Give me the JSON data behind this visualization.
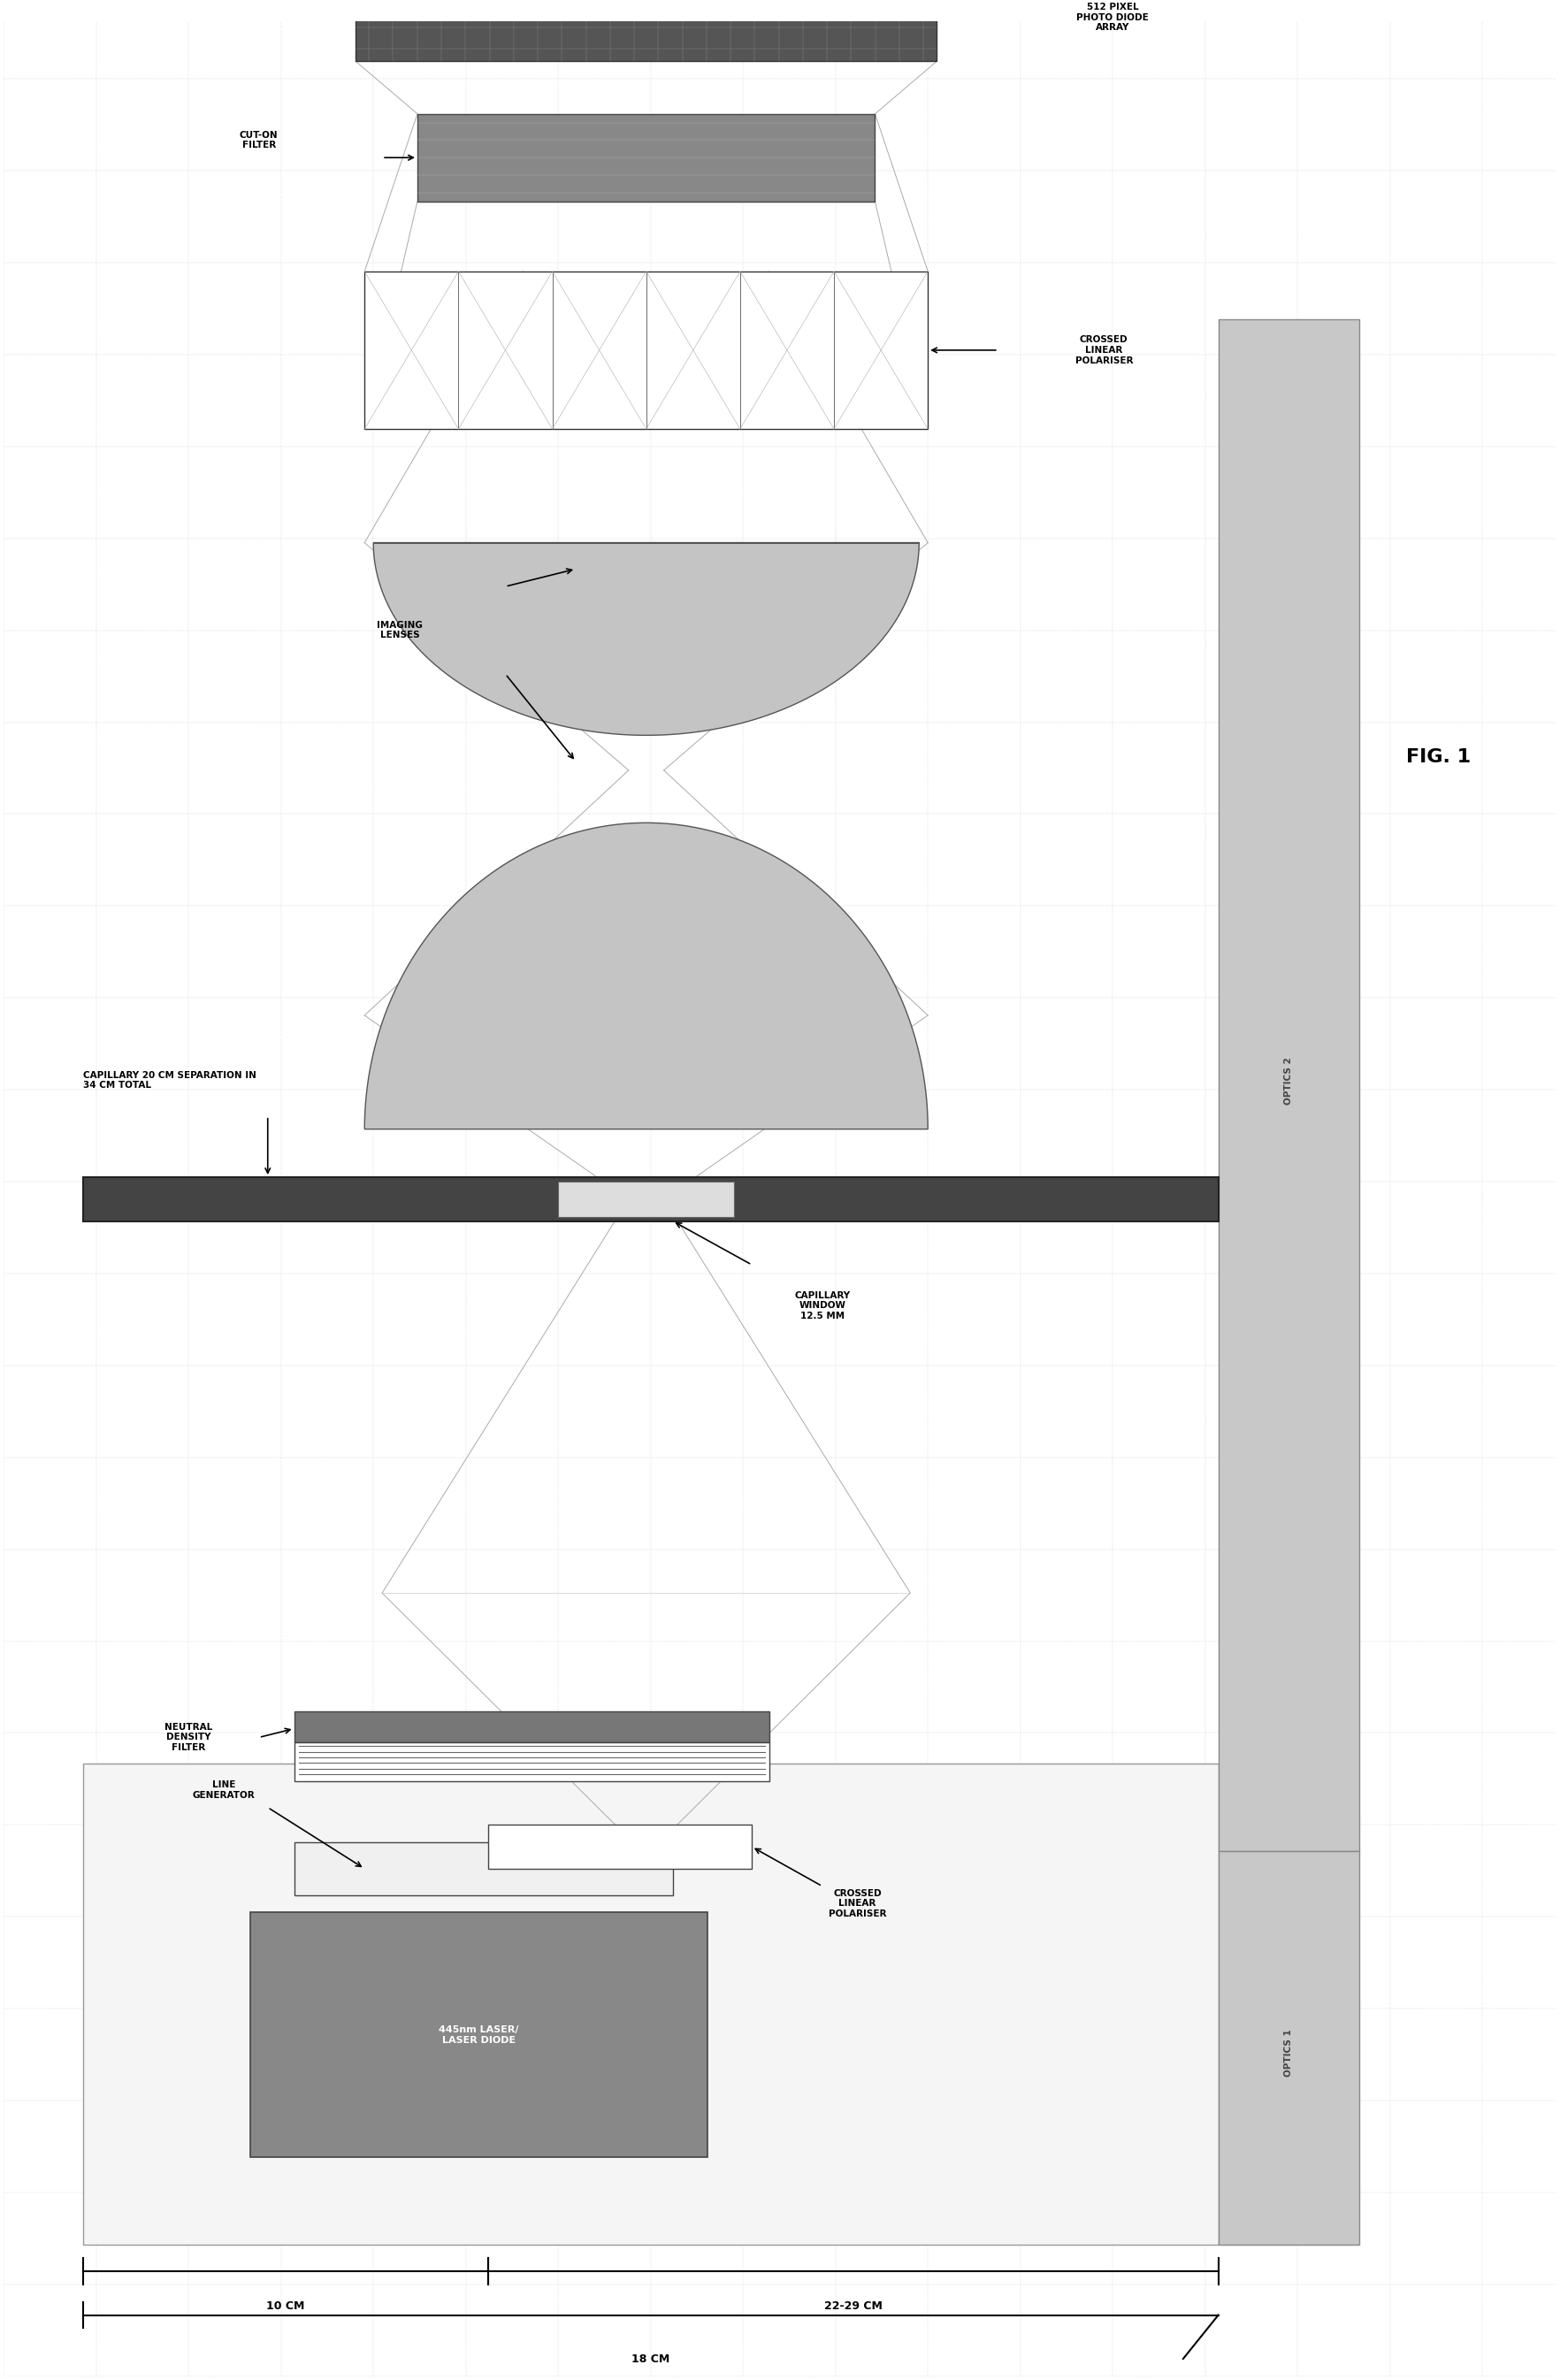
{
  "fig_width": 17.64,
  "fig_height": 26.91,
  "bg_color": "#ffffff",
  "grid_color": "#b8b8b8",
  "title": "FIG. 1",
  "optics1_label": "OPTICS 1",
  "optics2_label": "OPTICS 2",
  "dim_18cm": "18 CM",
  "dim_10cm": "10 CM",
  "dim_22_29cm": "22-29 CM",
  "capillary_label": "CAPILLARY 20 CM SEPARATION IN\n34 CM TOTAL",
  "neutral_density_label": "NEUTRAL\nDENSITY\nFILTER",
  "line_generator_label": "LINE\nGENERATOR",
  "laser_label": "445nm LASER/\nLASER DIODE",
  "crossed_linear_1_label": "CROSSED\nLINEAR\nPOLARISER",
  "capillary_window_label": "CAPILLARY\nWINDOW\n12.5 MM",
  "imaging_lenses_label": "IMAGING\nLENSES",
  "cut_on_filter_label": "CUT-ON\nFILTER",
  "crossed_linear_2_label": "CROSSED\nLINEAR\nPOLARISER",
  "photodiode_label": "512 PIXEL\nPHOTO DIODE\nARRAY"
}
